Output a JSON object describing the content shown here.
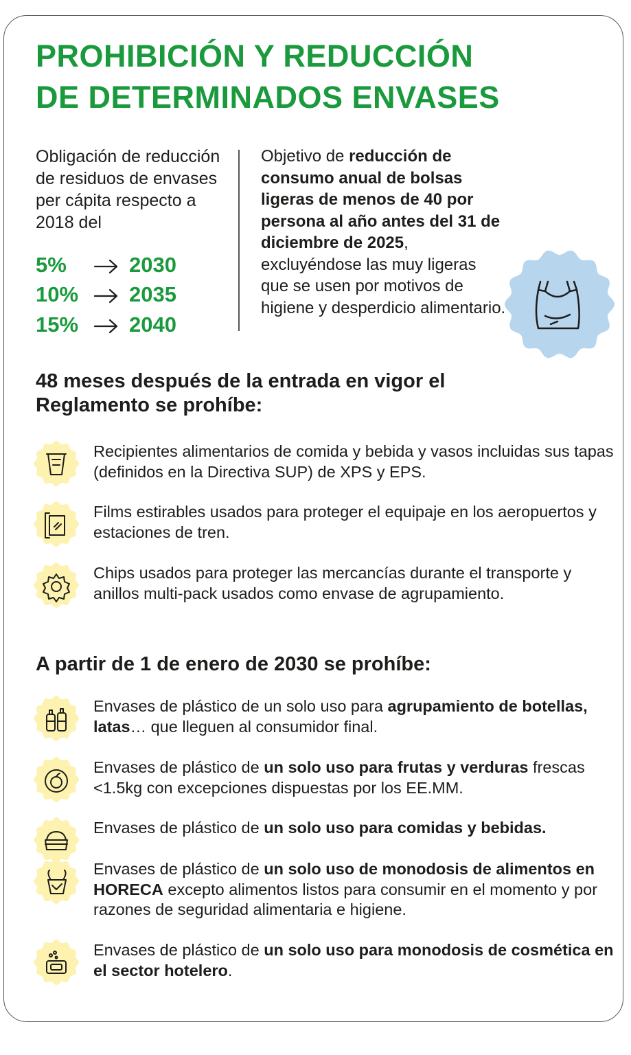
{
  "title": [
    "PROHIBICIÓN Y REDUCCIÓN",
    "DE DETERMINADOS ENVASES"
  ],
  "left": {
    "intro": "Obligación de reducción de residuos de envases per cápita respecto a 2018 del",
    "targets": [
      {
        "percent": "5%",
        "year": "2030"
      },
      {
        "percent": "10%",
        "year": "2035"
      },
      {
        "percent": "15%",
        "year": "2040"
      }
    ]
  },
  "right": {
    "text": [
      {
        "text": "Objetivo de ",
        "bold": false
      },
      {
        "text": "reducción de consumo anual de bolsas ligeras de menos de 40 por persona al año antes del 31 de diciembre de 2025",
        "bold": true
      },
      {
        "text": ", excluyéndose las muy ligeras que se usen por motivos de higiene y desperdicio alimentario.",
        "bold": false
      }
    ]
  },
  "sections": [
    {
      "heading": "48 meses después de la entrada en vigor el Reglamento se prohíbe:",
      "items": [
        {
          "text": [
            {
              "text": "Recipientes alimentarios de comida y bebida y vasos incluidas sus tapas (definidos en la Directiva SUP) de XPS y EPS.",
              "bold": false
            }
          ]
        },
        {
          "text": [
            {
              "text": "Films estirables usados para proteger el equipaje en los aeropuertos y estaciones de tren.",
              "bold": false
            }
          ]
        },
        {
          "text": [
            {
              "text": "Chips usados para proteger las mercancías durante el transporte y anillos multi-pack usados como envase de agrupamiento.",
              "bold": false
            }
          ]
        }
      ]
    },
    {
      "heading": "A partir de 1 de enero de 2030 se prohíbe:",
      "items": [
        {
          "text": [
            {
              "text": "Envases de plástico de un solo uso para ",
              "bold": false
            },
            {
              "text": "agrupamiento de botellas, latas",
              "bold": true
            },
            {
              "text": "… que lleguen al consumidor final.",
              "bold": false
            }
          ]
        },
        {
          "text": [
            {
              "text": "Envases de plástico de ",
              "bold": false
            },
            {
              "text": "un solo uso para frutas y verduras",
              "bold": true
            },
            {
              "text": " frescas <1.5kg con excepciones dispuestas por los EE.MM.",
              "bold": false
            }
          ]
        },
        {
          "text": [
            {
              "text": "Envases de plástico de ",
              "bold": false
            },
            {
              "text": "un solo uso para comidas y bebidas.",
              "bold": true
            }
          ]
        },
        {
          "text": [
            {
              "text": "Envases de plástico de ",
              "bold": false
            },
            {
              "text": "un solo uso de monodosis de alimentos en HORECA",
              "bold": true
            },
            {
              "text": " excepto alimentos listos para consumir en el momento y por razones de seguridad alimentaria e higiene.",
              "bold": false
            }
          ]
        },
        {
          "text": [
            {
              "text": "Envases de plástico de ",
              "bold": false
            },
            {
              "text": "un solo uso para monodosis de cosmética en el sector hotelero",
              "bold": true
            },
            {
              "text": ".",
              "bold": false
            }
          ]
        }
      ]
    }
  ]
}
